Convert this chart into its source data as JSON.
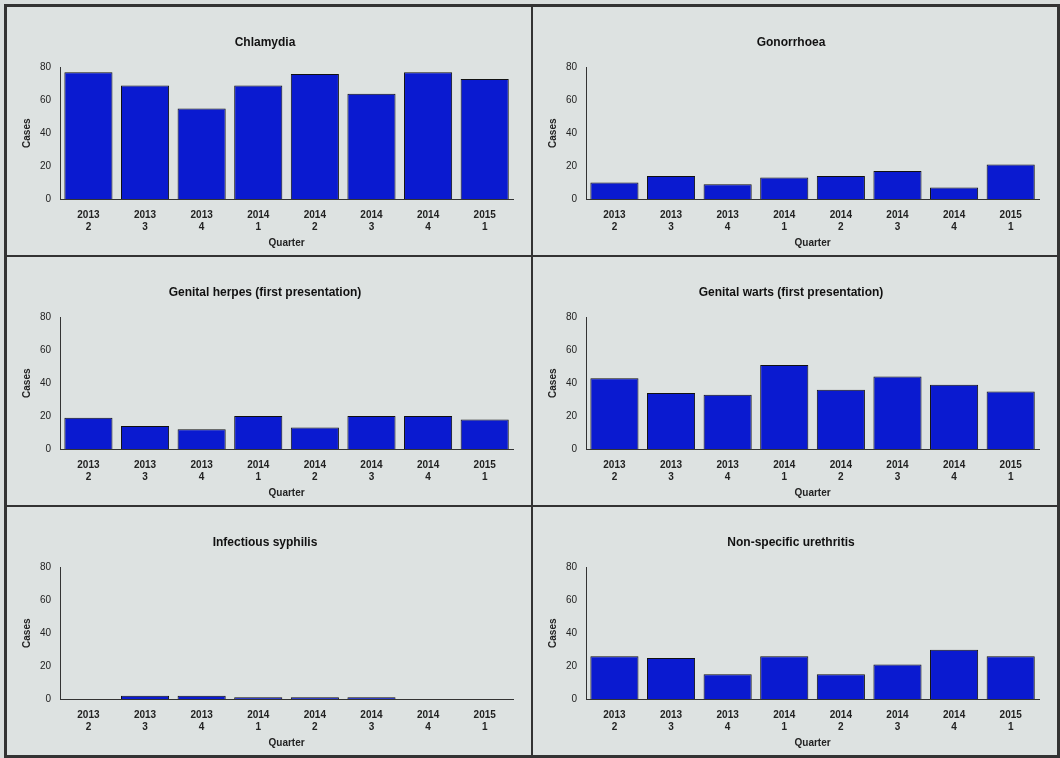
{
  "chart_data": [
    {
      "type": "bar",
      "title": "Chlamydia",
      "xlabel": "Quarter",
      "ylabel": "Cases",
      "categories": [
        "2013\n2",
        "2013\n3",
        "2013\n4",
        "2014\n1",
        "2014\n2",
        "2014\n3",
        "2014\n4",
        "2015\n1"
      ],
      "values": [
        77,
        69,
        55,
        69,
        76,
        64,
        77,
        73
      ],
      "color": "#0a1ad0",
      "ylim": [
        0,
        80
      ],
      "yticks": [
        0,
        20,
        40,
        60,
        80
      ],
      "grid": false,
      "legend": false
    },
    {
      "type": "bar",
      "title": "Gonorrhoea",
      "xlabel": "Quarter",
      "ylabel": "Cases",
      "categories": [
        "2013\n2",
        "2013\n3",
        "2013\n4",
        "2014\n1",
        "2014\n2",
        "2014\n3",
        "2014\n4",
        "2015\n1"
      ],
      "values": [
        10,
        14,
        9,
        13,
        14,
        17,
        7,
        21
      ],
      "color": "#0a1ad0",
      "ylim": [
        0,
        80
      ],
      "yticks": [
        0,
        20,
        40,
        60,
        80
      ],
      "grid": false,
      "legend": false
    },
    {
      "type": "bar",
      "title": "Genital herpes (first presentation)",
      "xlabel": "Quarter",
      "ylabel": "Cases",
      "categories": [
        "2013\n2",
        "2013\n3",
        "2013\n4",
        "2014\n1",
        "2014\n2",
        "2014\n3",
        "2014\n4",
        "2015\n1"
      ],
      "values": [
        19,
        14,
        12,
        20,
        13,
        20,
        20,
        18
      ],
      "color": "#0a1ad0",
      "ylim": [
        0,
        80
      ],
      "yticks": [
        0,
        20,
        40,
        60,
        80
      ],
      "grid": false,
      "legend": false
    },
    {
      "type": "bar",
      "title": "Genital warts (first presentation)",
      "xlabel": "Quarter",
      "ylabel": "Cases",
      "categories": [
        "2013\n2",
        "2013\n3",
        "2013\n4",
        "2014\n1",
        "2014\n2",
        "2014\n3",
        "2014\n4",
        "2015\n1"
      ],
      "values": [
        43,
        34,
        33,
        51,
        36,
        44,
        39,
        35
      ],
      "color": "#0a1ad0",
      "ylim": [
        0,
        80
      ],
      "yticks": [
        0,
        20,
        40,
        60,
        80
      ],
      "grid": false,
      "legend": false
    },
    {
      "type": "bar",
      "title": "Infectious syphilis",
      "xlabel": "Quarter",
      "ylabel": "Cases",
      "categories": [
        "2013\n2",
        "2013\n3",
        "2013\n4",
        "2014\n1",
        "2014\n2",
        "2014\n3",
        "2014\n4",
        "2015\n1"
      ],
      "values": [
        0,
        2,
        2,
        1,
        1,
        1,
        0,
        0
      ],
      "color": "#0a1ad0",
      "ylim": [
        0,
        80
      ],
      "yticks": [
        0,
        20,
        40,
        60,
        80
      ],
      "grid": false,
      "legend": false
    },
    {
      "type": "bar",
      "title": "Non-specific urethritis",
      "xlabel": "Quarter",
      "ylabel": "Cases",
      "categories": [
        "2013\n2",
        "2013\n3",
        "2013\n4",
        "2014\n1",
        "2014\n2",
        "2014\n3",
        "2014\n4",
        "2015\n1"
      ],
      "values": [
        26,
        25,
        15,
        26,
        15,
        21,
        30,
        26
      ],
      "color": "#0a1ad0",
      "ylim": [
        0,
        80
      ],
      "yticks": [
        0,
        20,
        40,
        60,
        80
      ],
      "grid": false,
      "legend": false
    }
  ]
}
